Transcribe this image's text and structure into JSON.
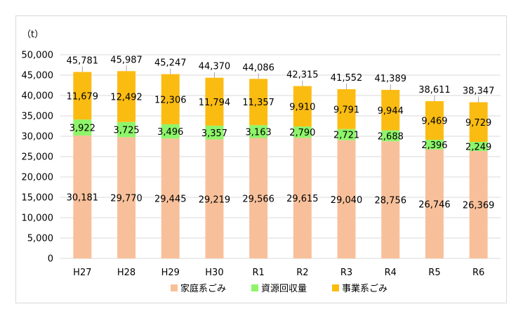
{
  "chart_data": {
    "type": "bar",
    "stacked": true,
    "unit_label": "（t）",
    "categories": [
      "H27",
      "H28",
      "H29",
      "H30",
      "R1",
      "R2",
      "R3",
      "R4",
      "R5",
      "R6"
    ],
    "series": [
      {
        "name": "家庭系ごみ",
        "color": "#f8c09a",
        "values": [
          30181,
          29770,
          29445,
          29219,
          29566,
          29615,
          29040,
          28756,
          26746,
          26369
        ]
      },
      {
        "name": "資源回収量",
        "color": "#8ef56a",
        "values": [
          3922,
          3725,
          3496,
          3357,
          3163,
          2790,
          2721,
          2688,
          2396,
          2249
        ]
      },
      {
        "name": "事業系ごみ",
        "color": "#fbbc12",
        "values": [
          11679,
          12492,
          12306,
          11794,
          11357,
          9910,
          9791,
          9944,
          9469,
          9729
        ]
      }
    ],
    "totals": [
      45781,
      45987,
      45247,
      44370,
      44086,
      42315,
      41552,
      41389,
      38611,
      38347
    ],
    "yticks": [
      0,
      5000,
      10000,
      15000,
      20000,
      25000,
      30000,
      35000,
      40000,
      45000,
      50000
    ],
    "ylim": [
      0,
      50000
    ],
    "grid": true,
    "legend_position": "bottom"
  }
}
